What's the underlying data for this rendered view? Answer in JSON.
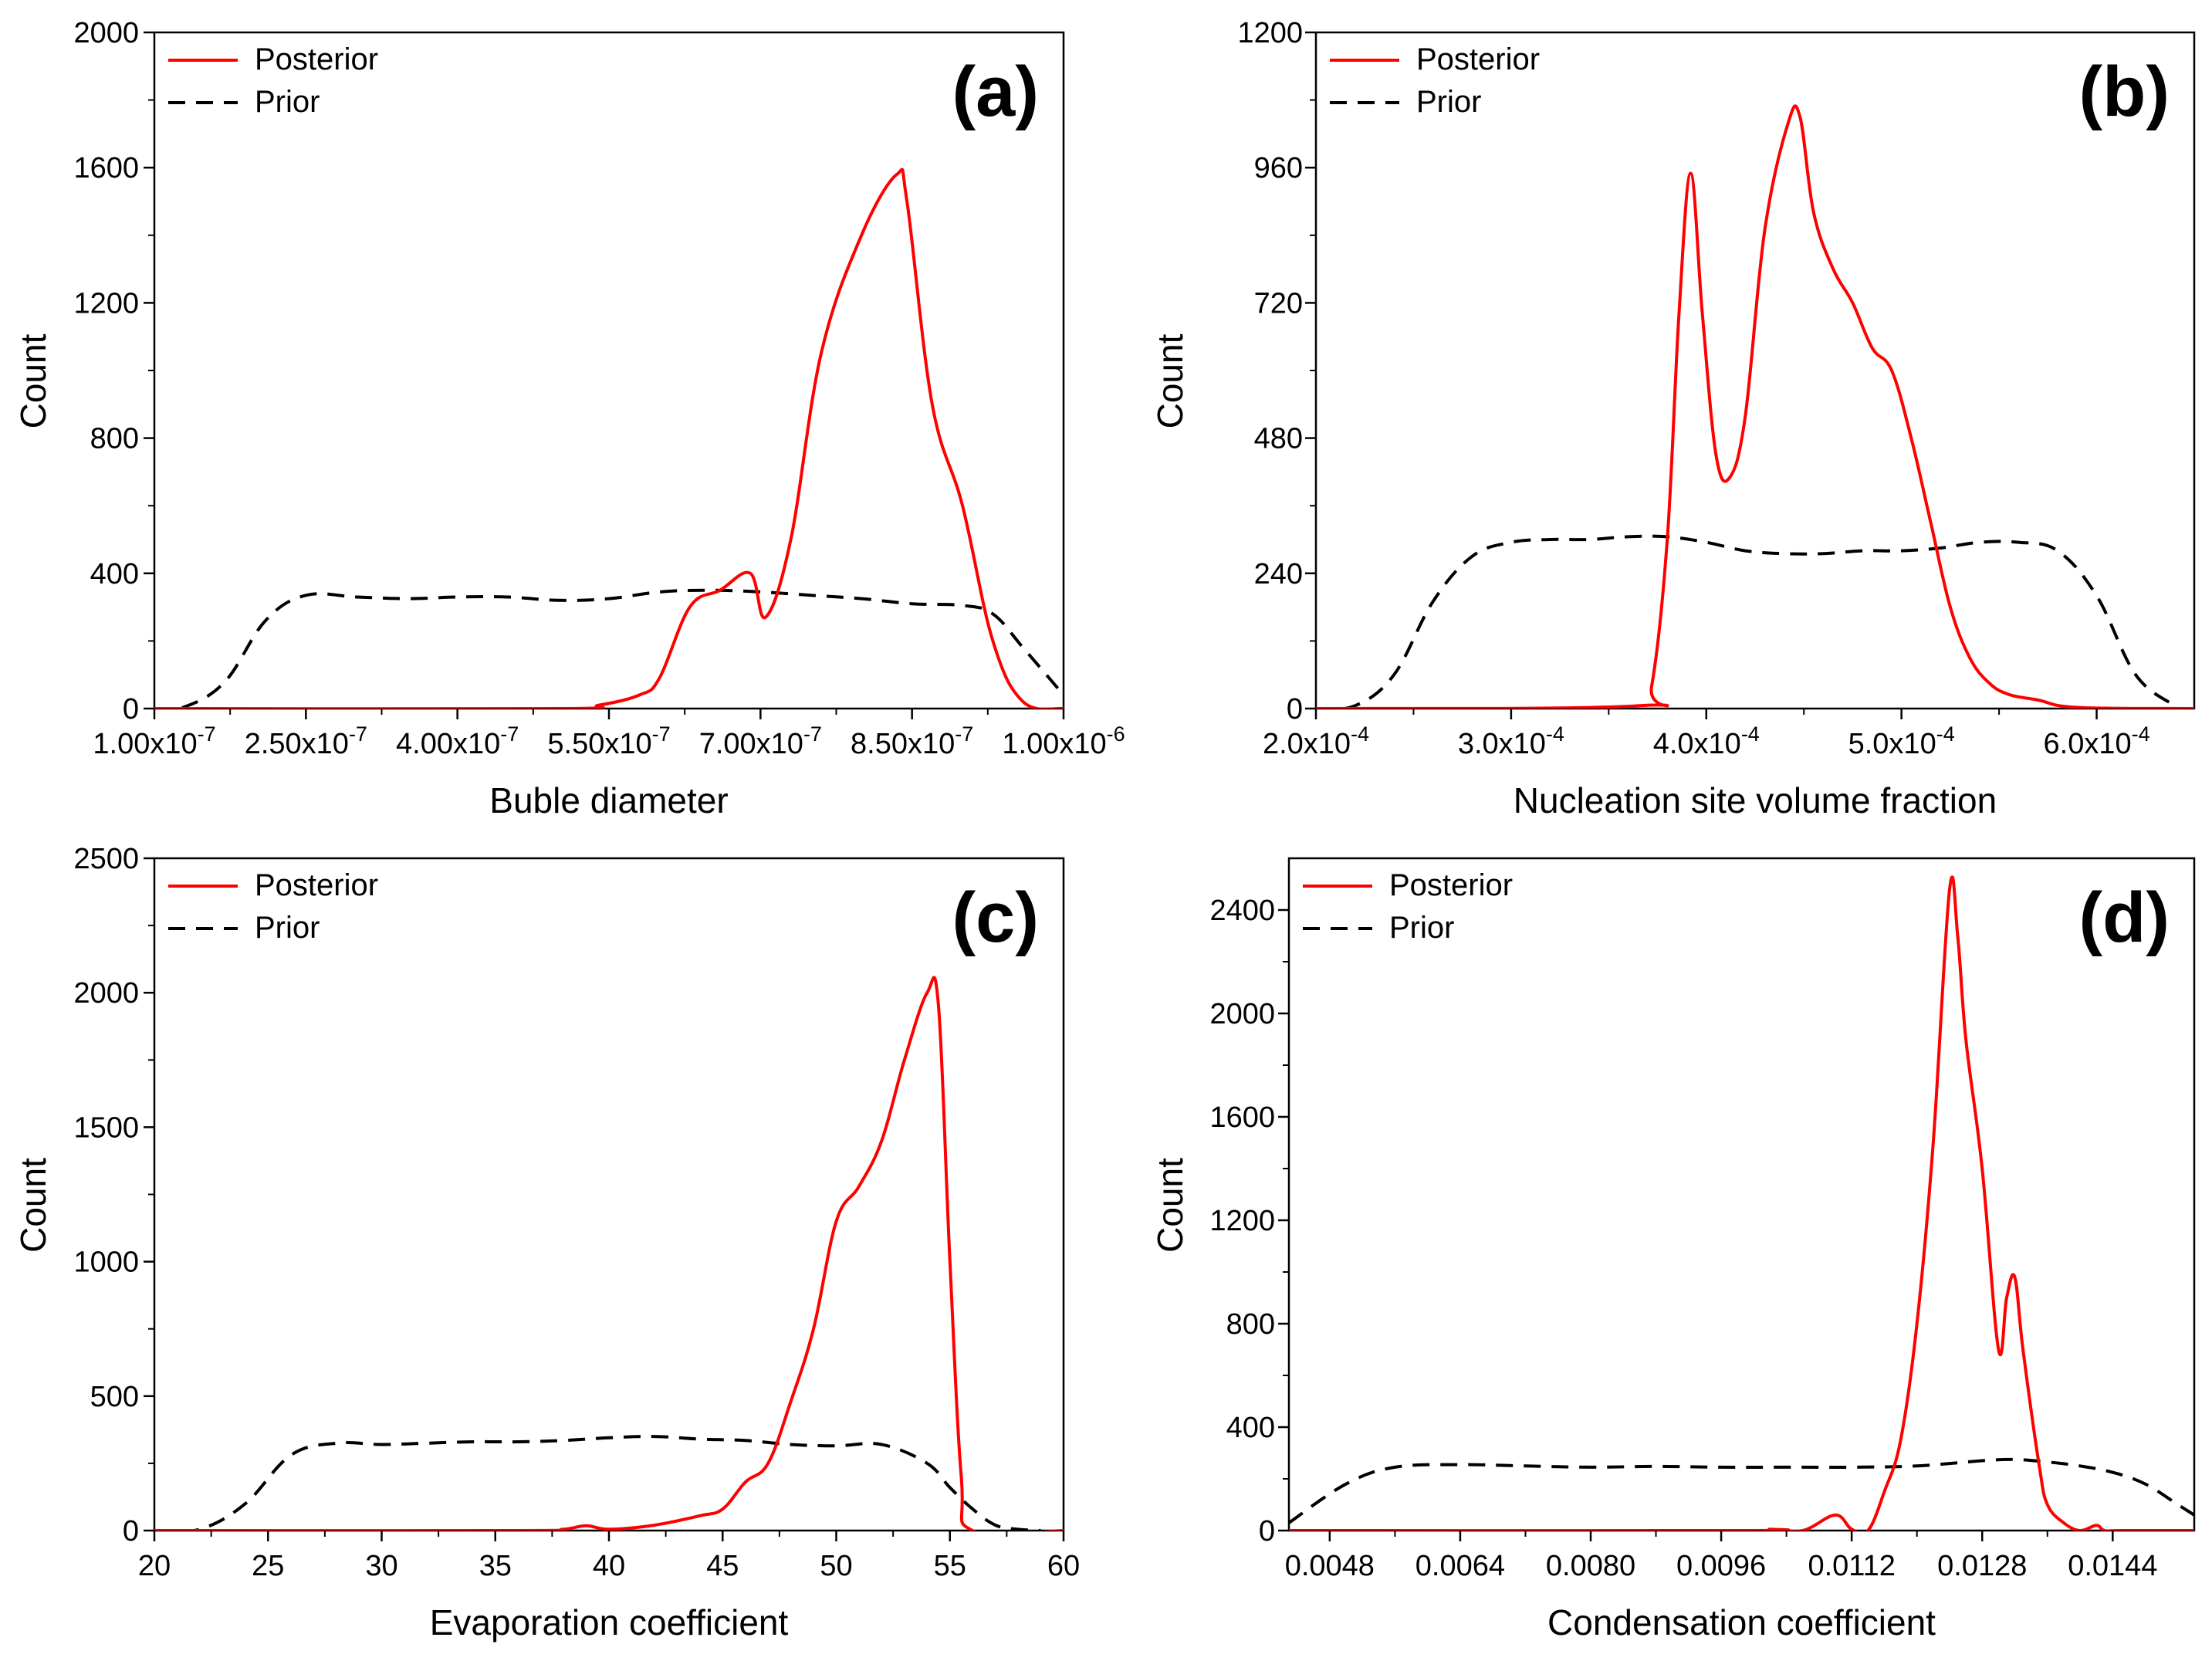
{
  "chart_data": [
    {
      "type": "line",
      "panel_label": "(a)",
      "xlabel": "Buble diameter",
      "ylabel": "Count",
      "xlim": [
        1e-07,
        1e-06
      ],
      "ylim": [
        0,
        2000
      ],
      "xticks": [
        1e-07,
        2.5e-07,
        4e-07,
        5.5e-07,
        7e-07,
        8.5e-07,
        1e-06
      ],
      "xtick_mantissas": [
        "1.00x10",
        "2.50x10",
        "4.00x10",
        "5.50x10",
        "7.00x10",
        "8.50x10",
        "1.00x10"
      ],
      "xtick_exponents": [
        "-7",
        "-7",
        "-7",
        "-7",
        "-7",
        "-7",
        "-6"
      ],
      "yticks": [
        "0",
        "400",
        "800",
        "1200",
        "1600",
        "2000"
      ],
      "legend": {
        "posterior": "Posterior",
        "prior": "Prior"
      },
      "series": [
        {
          "name": "Posterior",
          "x": [
            1e-07,
            5e-07,
            5.4e-07,
            5.8e-07,
            6e-07,
            6.3e-07,
            6.6e-07,
            6.9e-07,
            7.05e-07,
            7.3e-07,
            7.6e-07,
            8e-07,
            8.35e-07,
            8.45e-07,
            8.7e-07,
            9e-07,
            9.3e-07,
            9.6e-07,
            1e-06
          ],
          "values": [
            0,
            0,
            10,
            40,
            90,
            300,
            350,
            400,
            270,
            500,
            1050,
            1400,
            1580,
            1500,
            900,
            600,
            200,
            20,
            0
          ]
        },
        {
          "name": "Prior",
          "x": [
            1e-07,
            1.3e-07,
            1.7e-07,
            2.1e-07,
            2.5e-07,
            3e-07,
            3.5e-07,
            4e-07,
            4.5e-07,
            5e-07,
            5.5e-07,
            6e-07,
            6.5e-07,
            7e-07,
            7.5e-07,
            8e-07,
            8.5e-07,
            9e-07,
            9.3e-07,
            9.6e-07,
            1e-06
          ],
          "values": [
            0,
            5,
            80,
            260,
            335,
            330,
            325,
            330,
            330,
            320,
            325,
            345,
            350,
            345,
            335,
            325,
            310,
            305,
            280,
            180,
            40
          ]
        }
      ]
    },
    {
      "type": "line",
      "panel_label": "(b)",
      "xlabel": "Nucleation site volume fraction",
      "ylabel": "Count",
      "xlim": [
        0.0002,
        0.00065
      ],
      "ylim": [
        0,
        1200
      ],
      "xticks": [
        0.0002,
        0.0003,
        0.0004,
        0.0005,
        0.0006
      ],
      "xtick_mantissas": [
        "2.0x10",
        "3.0x10",
        "4.0x10",
        "5.0x10",
        "6.0x10"
      ],
      "xtick_exponents": [
        "-4",
        "-4",
        "-4",
        "-4",
        "-4"
      ],
      "yticks": [
        "0",
        "240",
        "480",
        "720",
        "960",
        "1200"
      ],
      "legend": {
        "posterior": "Posterior",
        "prior": "Prior"
      },
      "series": [
        {
          "name": "Posterior",
          "x": [
            0.0002,
            0.000365,
            0.000372,
            0.00038,
            0.000386,
            0.000392,
            0.000398,
            0.000405,
            0.000412,
            0.00042,
            0.00043,
            0.000442,
            0.000448,
            0.000455,
            0.000465,
            0.000475,
            0.000485,
            0.000495,
            0.000505,
            0.000515,
            0.000525,
            0.000535,
            0.000545,
            0.000555,
            0.00057,
            0.00059,
            0.00065
          ],
          "values": [
            0,
            5,
            40,
            300,
            700,
            950,
            700,
            450,
            410,
            520,
            850,
            1040,
            1050,
            880,
            780,
            720,
            640,
            600,
            480,
            330,
            180,
            90,
            45,
            25,
            15,
            2,
            0
          ]
        },
        {
          "name": "Prior",
          "x": [
            0.0002,
            0.00022,
            0.00024,
            0.00026,
            0.00028,
            0.0003,
            0.00032,
            0.00034,
            0.00036,
            0.00038,
            0.0004,
            0.00042,
            0.00044,
            0.00046,
            0.00048,
            0.0005,
            0.00052,
            0.00054,
            0.00056,
            0.00058,
            0.0006,
            0.00062,
            0.00064
          ],
          "values": [
            0,
            5,
            60,
            190,
            270,
            295,
            300,
            300,
            305,
            305,
            295,
            280,
            275,
            275,
            280,
            280,
            285,
            295,
            295,
            280,
            200,
            60,
            5
          ]
        }
      ]
    },
    {
      "type": "line",
      "panel_label": "(c)",
      "xlabel": "Evaporation coefficient",
      "ylabel": "Count",
      "xlim": [
        20,
        60
      ],
      "ylim": [
        0,
        2500
      ],
      "xticks": [
        "20",
        "25",
        "30",
        "35",
        "40",
        "45",
        "50",
        "55",
        "60"
      ],
      "yticks": [
        "0",
        "500",
        "1000",
        "1500",
        "2000",
        "2500"
      ],
      "legend": {
        "posterior": "Posterior",
        "prior": "Prior"
      },
      "series": [
        {
          "name": "Posterior",
          "x": [
            20,
            36,
            38,
            39,
            40,
            42,
            44,
            45,
            46,
            47,
            48,
            49,
            50,
            51,
            52,
            53,
            54,
            54.5,
            55,
            55.5,
            56,
            60
          ],
          "values": [
            0,
            0,
            5,
            18,
            5,
            20,
            55,
            80,
            180,
            250,
            480,
            750,
            1150,
            1280,
            1450,
            1750,
            2000,
            1950,
            1000,
            200,
            0,
            0
          ]
        },
        {
          "name": "Prior",
          "x": [
            20,
            22,
            24,
            26,
            28,
            30,
            32,
            34,
            36,
            38,
            40,
            42,
            44,
            46,
            48,
            50,
            52,
            54,
            55,
            56,
            57,
            58,
            59
          ],
          "values": [
            0,
            5,
            100,
            280,
            325,
            320,
            325,
            330,
            330,
            335,
            345,
            350,
            340,
            335,
            320,
            315,
            320,
            250,
            160,
            80,
            20,
            5,
            0
          ]
        }
      ]
    },
    {
      "type": "line",
      "panel_label": "(d)",
      "xlabel": "Condensation coefficient",
      "ylabel": "Count",
      "xlim": [
        0.0043,
        0.0154
      ],
      "ylim": [
        0,
        2600
      ],
      "xticks": [
        "0.0048",
        "0.0064",
        "0.0080",
        "0.0096",
        "0.0112",
        "0.0128",
        "0.0144"
      ],
      "yticks": [
        "0",
        "400",
        "800",
        "1200",
        "1600",
        "2000",
        "2400"
      ],
      "legend": {
        "posterior": "Posterior",
        "prior": "Prior"
      },
      "series": [
        {
          "name": "Posterior",
          "x": [
            0.0043,
            0.0099,
            0.0102,
            0.0106,
            0.011,
            0.0112,
            0.0114,
            0.0116,
            0.0118,
            0.012,
            0.0122,
            0.0124,
            0.0125,
            0.0126,
            0.0128,
            0.013,
            0.0131,
            0.0132,
            0.0133,
            0.0135,
            0.0136,
            0.0138,
            0.014,
            0.0142,
            0.0143,
            0.0145,
            0.0154
          ],
          "values": [
            0,
            0,
            5,
            0,
            60,
            5,
            0,
            150,
            350,
            800,
            1500,
            2480,
            2300,
            1900,
            1400,
            700,
            900,
            980,
            700,
            250,
            100,
            30,
            0,
            20,
            0,
            0,
            0
          ]
        },
        {
          "name": "Prior",
          "x": [
            0.0043,
            0.005,
            0.0056,
            0.0064,
            0.0072,
            0.008,
            0.0088,
            0.0096,
            0.0104,
            0.0112,
            0.012,
            0.0128,
            0.0132,
            0.0136,
            0.014,
            0.0144,
            0.0148,
            0.0152,
            0.0154
          ],
          "values": [
            30,
            180,
            245,
            255,
            250,
            245,
            248,
            245,
            245,
            245,
            250,
            270,
            275,
            265,
            250,
            225,
            180,
            100,
            60
          ]
        }
      ]
    }
  ]
}
